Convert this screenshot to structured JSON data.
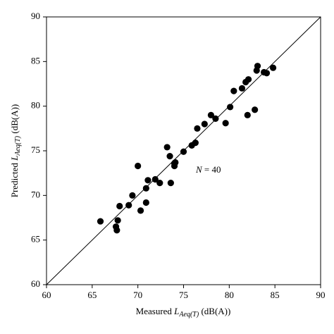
{
  "chart_data": {
    "type": "scatter",
    "xlabel": {
      "prefix": "Measured",
      "symbol": "L",
      "subscript": "Aeq(T)",
      "suffix": "(dB(A))"
    },
    "ylabel": {
      "prefix": "Predicted",
      "symbol": "L",
      "subscript": "Aeq(T)",
      "suffix": "(dB(A))"
    },
    "annotation": {
      "symbol": "N",
      "text": "= 40"
    },
    "color": "#000000",
    "reference_line": true,
    "x": [
      65.9,
      67.6,
      67.7,
      67.8,
      68.0,
      69.0,
      69.4,
      70.0,
      70.3,
      70.9,
      70.9,
      71.1,
      71.9,
      72.4,
      73.2,
      73.5,
      73.6,
      74.0,
      74.0,
      74.1,
      75.0,
      75.9,
      76.3,
      76.5,
      77.3,
      78.0,
      78.5,
      79.6,
      80.1,
      80.5,
      81.4,
      81.8,
      82.1,
      82.0,
      82.8,
      83.0,
      83.1,
      83.8,
      84.1,
      84.8
    ],
    "values": [
      67.1,
      66.5,
      66.1,
      67.2,
      68.8,
      68.9,
      70.0,
      73.3,
      68.3,
      69.2,
      70.8,
      71.7,
      71.8,
      71.4,
      75.4,
      74.4,
      71.4,
      73.6,
      73.3,
      73.7,
      74.9,
      75.6,
      75.9,
      77.5,
      78.0,
      79.0,
      78.6,
      78.1,
      79.9,
      81.7,
      82.0,
      82.7,
      83.0,
      79.0,
      79.6,
      84.0,
      84.5,
      83.8,
      83.7,
      84.3
    ],
    "xlim": [
      60,
      90
    ],
    "ylim": [
      60,
      90
    ],
    "xticks": [
      60,
      65,
      70,
      75,
      80,
      85,
      90
    ],
    "yticks": [
      60,
      65,
      70,
      75,
      80,
      85,
      90
    ]
  }
}
